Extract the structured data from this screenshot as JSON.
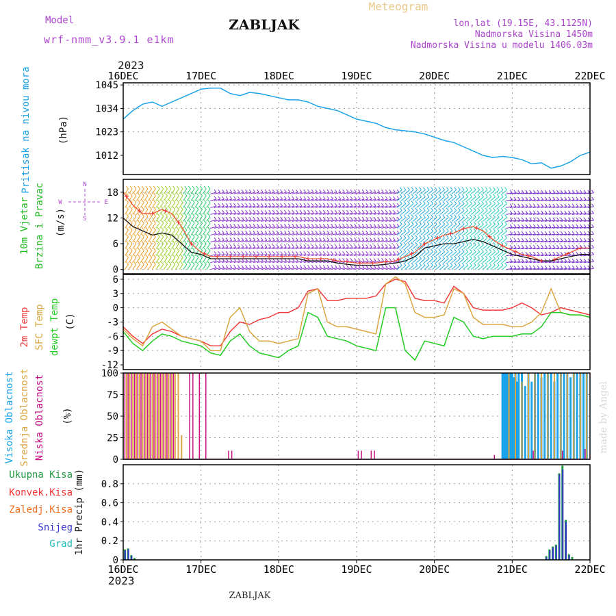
{
  "header": {
    "model_label": "Model",
    "model_name": "wrf-nmm_v3.9.1 e1km",
    "station": "ZABLJAK",
    "product": "Meteogram",
    "lonlat": "lon,lat (19.15E, 43.1125N)",
    "elevation": "Nadmorska Visina 1450m",
    "model_elevation": "Nadmorska Visina u modelu 1406.03m",
    "footer_station": "ZABLJAK",
    "credit": "made by Angel"
  },
  "colors": {
    "pressure": "#1aa3e8",
    "temp2m": "#f03c3c",
    "sfc": "#d9a640",
    "dew": "#22cc22",
    "high_cloud": "#1aa3e8",
    "mid_cloud": "#d9a640",
    "low_cloud": "#cc1188",
    "label_purple": "#aa44cc",
    "label_green": "#22bb22",
    "total_precip": "#229944",
    "conv_precip": "#ee3333",
    "frozen": "#f07020",
    "snow": "#3333cc",
    "hail": "#22bbbb"
  },
  "chart_data": [
    {
      "type": "line",
      "name": "pressure",
      "xlabel": "",
      "ylabel": "(hPa)",
      "ylabel_main": "Pritisak na nivou mora",
      "top_year": "2023",
      "bottom_year": "2023",
      "x_ticks": [
        "16DEC",
        "17DEC",
        "18DEC",
        "19DEC",
        "20DEC",
        "21DEC",
        "22DEC"
      ],
      "ylim": [
        1003,
        1046
      ],
      "y_ticks": [
        1012,
        1023,
        1034,
        1045
      ],
      "grid": true,
      "x_hours": [
        0,
        3,
        6,
        9,
        12,
        15,
        18,
        21,
        24,
        27,
        30,
        33,
        36,
        39,
        42,
        45,
        48,
        51,
        54,
        57,
        60,
        63,
        66,
        69,
        72,
        75,
        78,
        81,
        84,
        87,
        90,
        93,
        96,
        99,
        102,
        105,
        108,
        111,
        114,
        117,
        120,
        123,
        126,
        129,
        132,
        135,
        138,
        141,
        144
      ],
      "values": [
        1029,
        1033,
        1036,
        1037,
        1035,
        1037,
        1039,
        1041,
        1043,
        1043.5,
        1043.5,
        1041,
        1040,
        1041.5,
        1041,
        1040,
        1039,
        1038,
        1038,
        1037,
        1035,
        1034,
        1033,
        1031,
        1029,
        1028,
        1027,
        1025,
        1024,
        1023.5,
        1023,
        1022,
        1020.5,
        1019,
        1018,
        1016,
        1014,
        1012,
        1011,
        1011.5,
        1011,
        1010,
        1008,
        1008.5,
        1006,
        1007,
        1009,
        1012,
        1013.5
      ]
    },
    {
      "type": "line",
      "name": "wind",
      "xlabel": "",
      "ylabel": "(m/s)",
      "ylabel_main": "10m Vjetar",
      "ylabel_sub": "Brzina i Pravac",
      "compass": {
        "n": "N",
        "s": "S",
        "w": "W",
        "e": "E"
      },
      "ylim": [
        -1,
        21
      ],
      "y_ticks": [
        0,
        6,
        12,
        18
      ],
      "grid": true,
      "x_hours": [
        0,
        3,
        6,
        9,
        12,
        15,
        18,
        21,
        24,
        27,
        30,
        33,
        36,
        39,
        42,
        45,
        48,
        51,
        54,
        57,
        60,
        63,
        66,
        69,
        72,
        75,
        78,
        81,
        84,
        87,
        90,
        93,
        96,
        99,
        102,
        105,
        108,
        111,
        114,
        117,
        120,
        123,
        126,
        129,
        132,
        135,
        138,
        141,
        144
      ],
      "series": [
        {
          "name": "speed",
          "values": [
            12,
            10,
            9,
            8,
            8.5,
            8,
            6,
            4,
            3.5,
            2.5,
            2.5,
            2.5,
            2.5,
            2.5,
            2.5,
            2.5,
            2.5,
            2.5,
            2.5,
            2,
            2,
            2,
            1.5,
            1.2,
            1,
            1,
            1,
            1.2,
            1.5,
            2,
            3,
            5,
            5.5,
            6,
            6,
            6.5,
            7,
            6.5,
            5.5,
            4.5,
            3.5,
            3,
            2.5,
            2,
            2,
            2.5,
            3,
            3.5,
            3.5
          ]
        },
        {
          "name": "gust",
          "values": [
            18,
            15,
            13,
            13,
            14,
            13,
            10,
            6,
            4,
            3,
            3,
            3,
            3,
            3,
            3,
            3,
            3,
            3,
            3,
            2.5,
            2.5,
            2.5,
            2,
            1.8,
            1.5,
            1.5,
            1.5,
            1.8,
            2,
            3,
            4,
            6,
            7,
            8,
            8.5,
            9.5,
            10,
            9,
            7,
            5.5,
            4.5,
            3.5,
            3,
            2,
            2,
            3,
            4,
            5,
            5
          ]
        }
      ]
    },
    {
      "type": "line",
      "name": "temperature",
      "xlabel": "",
      "ylabel": "(C)",
      "ylabel_main1": "2m Temp",
      "ylabel_main2": "SFC Temp",
      "ylabel_main3": "dewpt Temp",
      "ylim": [
        -13,
        7
      ],
      "y_ticks": [
        -12,
        -9,
        -6,
        -3,
        0,
        3,
        6
      ],
      "grid": true,
      "x_hours": [
        0,
        3,
        6,
        9,
        12,
        15,
        18,
        21,
        24,
        27,
        30,
        33,
        36,
        39,
        42,
        45,
        48,
        51,
        54,
        57,
        60,
        63,
        66,
        69,
        72,
        75,
        78,
        81,
        84,
        87,
        90,
        93,
        96,
        99,
        102,
        105,
        108,
        111,
        114,
        117,
        120,
        123,
        126,
        129,
        132,
        135,
        138,
        141,
        144
      ],
      "series": [
        {
          "name": "2m Temp",
          "values": [
            -4,
            -6,
            -7.5,
            -5.5,
            -4.5,
            -5,
            -6,
            -6.5,
            -7,
            -8,
            -8,
            -5,
            -3,
            -3.5,
            -2.5,
            -2,
            -1,
            -1,
            0,
            3.5,
            4,
            1.5,
            1.5,
            2,
            2,
            2,
            2.5,
            5,
            6,
            5.5,
            2,
            1.5,
            1.5,
            1,
            4.5,
            3,
            0,
            -0.5,
            -0.5,
            -0.5,
            0,
            1,
            0,
            -1.5,
            -1,
            0,
            -0.5,
            -1,
            -1.5
          ]
        },
        {
          "name": "SFC Temp",
          "values": [
            -4.5,
            -6.5,
            -8,
            -4,
            -3,
            -4.5,
            -6,
            -6.5,
            -7,
            -9,
            -9,
            -2,
            0,
            -5,
            -7,
            -7,
            -7.5,
            -7,
            -6.5,
            3,
            4,
            -3,
            -4,
            -4,
            -4.5,
            -5,
            -5.5,
            5,
            6.5,
            5,
            -1,
            -2,
            -2,
            -1.5,
            4,
            3,
            -2,
            -3.5,
            -3.5,
            -3.5,
            -4,
            -4,
            -3,
            -1,
            4,
            -1,
            -1.5,
            -1.5,
            -2
          ]
        },
        {
          "name": "dewpt Temp",
          "values": [
            -5,
            -7.5,
            -9,
            -7,
            -5.5,
            -6,
            -7,
            -7.5,
            -8,
            -9.5,
            -10,
            -7,
            -5.5,
            -8,
            -9.5,
            -10,
            -10.5,
            -9,
            -8,
            -1,
            -2,
            -6,
            -6.5,
            -7,
            -8,
            -8.5,
            -9,
            0,
            0,
            -9,
            -11,
            -7,
            -7.5,
            -8,
            -2,
            -3,
            -6,
            -6.5,
            -6,
            -6,
            -6,
            -5.5,
            -5.5,
            -4,
            -1,
            -1,
            -1.5,
            -1.5,
            -2
          ]
        }
      ]
    },
    {
      "type": "bar",
      "name": "cloudiness",
      "xlabel": "",
      "ylabel": "(%)",
      "ylabel_main1": "Visoka Oblacnost",
      "ylabel_main2": "Srednja Oblacnost",
      "ylabel_main3": "Niska Oblacnost",
      "ylim": [
        0,
        100
      ],
      "y_ticks": [
        0,
        25,
        50,
        75,
        100
      ],
      "grid": true,
      "series": [
        {
          "name": "Visoka Oblacnost",
          "x_hours": [
            117,
            117.5,
            118,
            118.5,
            119,
            119.5,
            120,
            120.5,
            121,
            121.5,
            122,
            123,
            124,
            125,
            126,
            127,
            128,
            129,
            130,
            131,
            132,
            133,
            134,
            135,
            136,
            137,
            138,
            139,
            140,
            141,
            142,
            143
          ],
          "values": [
            100,
            100,
            100,
            100,
            100,
            100,
            100,
            95,
            100,
            90,
            100,
            100,
            85,
            100,
            90,
            100,
            100,
            95,
            100,
            100,
            100,
            90,
            100,
            100,
            100,
            100,
            95,
            100,
            100,
            100,
            100,
            100
          ]
        },
        {
          "name": "Srednja Oblacnost",
          "x_hours": [
            1,
            2,
            3,
            4,
            5,
            6,
            7,
            8,
            9,
            10,
            11,
            12,
            13,
            14,
            15,
            16,
            17,
            18,
            119,
            121,
            123,
            125,
            127,
            129,
            131,
            133,
            135,
            137,
            139,
            141,
            143
          ],
          "values": [
            100,
            100,
            100,
            100,
            100,
            100,
            100,
            100,
            100,
            100,
            100,
            100,
            100,
            100,
            100,
            100,
            100,
            28,
            100,
            100,
            90,
            100,
            100,
            100,
            100,
            100,
            100,
            100,
            100,
            100,
            100
          ]
        },
        {
          "name": "Niska Oblacnost",
          "x_hours": [
            0.5,
            1.5,
            2.5,
            3.5,
            4.5,
            5.5,
            6.5,
            7.5,
            8.5,
            9.5,
            10.5,
            11.5,
            12.5,
            13.5,
            14.5,
            15.5,
            20.5,
            21.5,
            23.5,
            25.5,
            32.5,
            33.5,
            72.5,
            73.5,
            76.5,
            77.5,
            114.5,
            126.5,
            135.5,
            142.5
          ],
          "values": [
            100,
            100,
            100,
            100,
            100,
            100,
            100,
            100,
            100,
            100,
            100,
            100,
            100,
            100,
            100,
            100,
            100,
            100,
            100,
            100,
            10,
            10,
            10,
            10,
            10,
            10,
            5,
            10,
            10,
            12
          ]
        }
      ]
    },
    {
      "type": "bar",
      "name": "precipitation",
      "xlabel": "",
      "ylabel": "1hr Precip (mm)",
      "ylim": [
        0,
        1.0
      ],
      "y_ticks": [
        0,
        0.2,
        0.4,
        0.6,
        0.8
      ],
      "grid": true,
      "legend": [
        "Ukupna Kisa",
        "Konvek.Kisa",
        "Zaledj.Kisa",
        "Snijeg",
        "Grad"
      ],
      "series": [
        {
          "name": "Ukupna Kisa",
          "x_hours": [
            0.5,
            1.5,
            2.5,
            3.5,
            130.5,
            131.5,
            132.5,
            133.5,
            134.5,
            135.5,
            136.5,
            137.5,
            138.5
          ],
          "values": [
            0.11,
            0.12,
            0.05,
            0.02,
            0.04,
            0.11,
            0.14,
            0.16,
            0.91,
            0.99,
            0.42,
            0.06,
            0.03
          ]
        },
        {
          "name": "Snijeg",
          "x_hours": [
            0.6,
            1.6,
            2.6,
            130.6,
            131.6,
            132.6,
            133.6,
            134.6,
            135.6,
            136.6,
            137.6
          ],
          "values": [
            0.1,
            0.11,
            0.04,
            0.03,
            0.1,
            0.13,
            0.15,
            0.9,
            0.95,
            0.4,
            0.05
          ]
        }
      ]
    }
  ]
}
